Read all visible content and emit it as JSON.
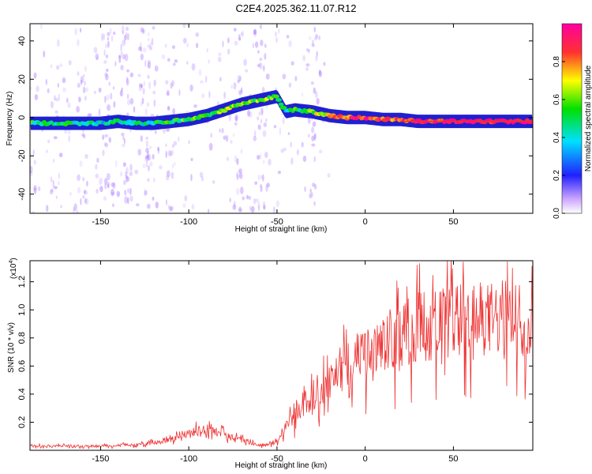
{
  "title": "C2E4.2025.362.11.07.R12",
  "chart_data": [
    {
      "type": "heatmap",
      "xlabel": "Height of straight line (km)",
      "ylabel": "Frequency (Hz)",
      "xlim": [
        -190,
        95
      ],
      "ylim": [
        -50,
        49
      ],
      "xticks": [
        -150,
        -100,
        -50,
        0,
        50
      ],
      "yticks": [
        -40,
        -20,
        0,
        20,
        40
      ],
      "colorbar": {
        "label": "Normalized spectral amplitude",
        "range": [
          0.0,
          1.0
        ],
        "ticks": [
          "0.0",
          "0.2",
          "0.4",
          "0.6",
          "0.8"
        ],
        "tick_values": [
          0.0,
          0.2,
          0.4,
          0.6,
          0.8
        ]
      },
      "ridge": {
        "x": [
          -190,
          -170,
          -150,
          -140,
          -130,
          -120,
          -110,
          -100,
          -90,
          -80,
          -70,
          -60,
          -50,
          -45,
          -40,
          -30,
          -20,
          -10,
          0,
          10,
          20,
          30,
          50,
          70,
          90,
          95
        ],
        "y": [
          -3,
          -3,
          -3,
          -2,
          -3,
          -3,
          -2,
          -1,
          1,
          4,
          7,
          9,
          11,
          3,
          4,
          3,
          1,
          0,
          0,
          -1,
          -1,
          -2,
          -2,
          -2,
          -2,
          -2
        ],
        "amplitude": [
          0.5,
          0.45,
          0.4,
          0.45,
          0.45,
          0.45,
          0.5,
          0.55,
          0.55,
          0.6,
          0.6,
          0.6,
          0.55,
          0.45,
          0.5,
          0.6,
          0.75,
          0.85,
          0.9,
          0.85,
          0.85,
          0.9,
          0.95,
          0.95,
          0.95,
          0.9
        ]
      }
    },
    {
      "type": "line",
      "xlabel": "Height of straight line (km)",
      "ylabel": "SNR (10 * v/v)",
      "y_multiplier": "(x10",
      "y_multiplier_exp": "4",
      "xlim": [
        -190,
        95
      ],
      "ylim": [
        0,
        1.35
      ],
      "xticks": [
        -150,
        -100,
        -50,
        0,
        50
      ],
      "yticks": [
        0.2,
        0.4,
        0.6,
        0.8,
        1.0,
        1.2
      ],
      "series": [
        {
          "color": "#ee3333",
          "envelope_x": [
            -190,
            -150,
            -135,
            -130,
            -120,
            -110,
            -100,
            -95,
            -90,
            -85,
            -80,
            -75,
            -70,
            -65,
            -60,
            -55,
            -50,
            -45,
            -40,
            -35,
            -30,
            -25,
            -20,
            -15,
            -10,
            -5,
            0,
            5,
            10,
            15,
            20,
            25,
            30,
            40,
            50,
            60,
            70,
            80,
            90,
            95
          ],
          "envelope_y": [
            0.04,
            0.04,
            0.05,
            0.05,
            0.07,
            0.1,
            0.15,
            0.18,
            0.2,
            0.18,
            0.15,
            0.12,
            0.1,
            0.07,
            0.05,
            0.05,
            0.08,
            0.2,
            0.35,
            0.42,
            0.5,
            0.58,
            0.66,
            0.74,
            0.8,
            0.84,
            0.86,
            0.9,
            0.96,
            1.02,
            1.06,
            1.1,
            1.14,
            1.16,
            1.18,
            1.2,
            1.2,
            1.22,
            1.22,
            1.22
          ]
        }
      ]
    }
  ]
}
